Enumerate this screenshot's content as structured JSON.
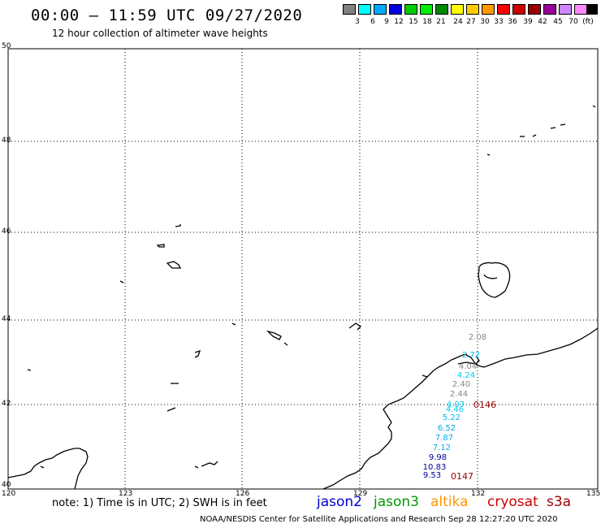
{
  "header": {
    "title": "00:00 – 11:59 UTC 09/27/2020",
    "subtitle": "12 hour collection of altimeter wave heights"
  },
  "legend": {
    "unit": "(ft)",
    "colors": [
      "#808080",
      "#00ffff",
      "#00aaff",
      "#0000dd",
      "#00cc00",
      "#00ee00",
      "#008800",
      "#ffff00",
      "#ffcc00",
      "#ff9900",
      "#ff0000",
      "#cc0000",
      "#990000",
      "#990099",
      "#cc88ff",
      "#ff88ff",
      "#000000"
    ],
    "labels": [
      "3",
      "6",
      "9",
      "12",
      "15",
      "18",
      "21",
      "24",
      "27",
      "30",
      "33",
      "36",
      "39",
      "42",
      "45",
      "70"
    ]
  },
  "axes": {
    "lon_labels": [
      "120",
      "123",
      "126",
      "129",
      "132",
      "135"
    ],
    "lat_labels": [
      "50",
      "48",
      "46",
      "44",
      "42",
      "40"
    ]
  },
  "observations": [
    {
      "text": "2.08",
      "color": "#888888"
    },
    {
      "text": "2.72",
      "color": "#00ccee"
    },
    {
      "text": "4.04",
      "color": "#888888"
    },
    {
      "text": "4.24",
      "color": "#00ccee"
    },
    {
      "text": "2.40",
      "color": "#888888"
    },
    {
      "text": "2.44",
      "color": "#888888"
    },
    {
      "text": "4.07",
      "color": "#00ccee"
    },
    {
      "text": "4.46",
      "color": "#00ccee"
    },
    {
      "text": "5.22",
      "color": "#00bbee"
    },
    {
      "text": "6.52",
      "color": "#00aaee"
    },
    {
      "text": "7.87",
      "color": "#00aaee"
    },
    {
      "text": "7.12",
      "color": "#00aaee"
    },
    {
      "text": "9.98",
      "color": "#000099"
    },
    {
      "text": "10.83",
      "color": "#000099"
    },
    {
      "text": "9.53",
      "color": "#000099"
    }
  ],
  "passes": [
    {
      "text": "0146",
      "color": "#990000"
    },
    {
      "text": "0147",
      "color": "#990000"
    }
  ],
  "footer": {
    "note": "note: 1) Time is in UTC; 2) SWH is in feet",
    "satellites": [
      {
        "name": "jason2",
        "color": "#0000cc"
      },
      {
        "name": "jason3",
        "color": "#009900"
      },
      {
        "name": "altika",
        "color": "#ff9900"
      },
      {
        "name": "cryosat",
        "color": "#cc0000"
      },
      {
        "name": "s3a",
        "color": "#990000"
      }
    ],
    "credit": "NOAA/NESDIS Center for Satellite Applications and Research    Sep 28 12:27:20 UTC 2020"
  }
}
